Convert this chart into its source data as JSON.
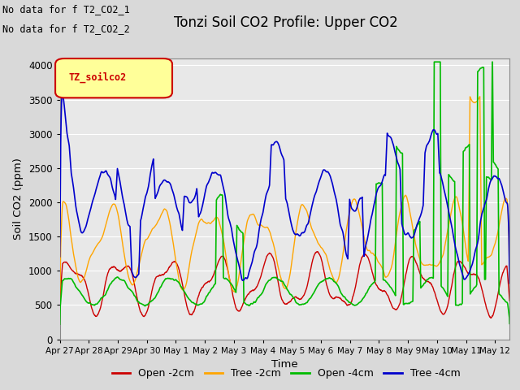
{
  "title": "Tonzi Soil CO2 Profile: Upper CO2",
  "xlabel": "Time",
  "ylabel": "Soil CO2 (ppm)",
  "ylim": [
    0,
    4100
  ],
  "yticks": [
    0,
    500,
    1000,
    1500,
    2000,
    2500,
    3000,
    3500,
    4000
  ],
  "annotations": [
    "No data for f T2_CO2_1",
    "No data for f T2_CO2_2"
  ],
  "legend_label": "TZ_soilco2",
  "series_labels": [
    "Open -2cm",
    "Tree -2cm",
    "Open -4cm",
    "Tree -4cm"
  ],
  "series_colors": [
    "#cc0000",
    "#ffa500",
    "#00bb00",
    "#0000cc"
  ],
  "fig_facecolor": "#d9d9d9",
  "plot_facecolor": "#e8e8e8",
  "tick_labels": [
    "Apr 27",
    "Apr 28",
    "Apr 29",
    "Apr 30",
    "May 1",
    "May 2",
    "May 3",
    "May 4",
    "May 5",
    "May 6",
    "May 7",
    "May 8",
    "May 9",
    "May 10",
    "May 11",
    "May 12"
  ],
  "n_points": 2000
}
